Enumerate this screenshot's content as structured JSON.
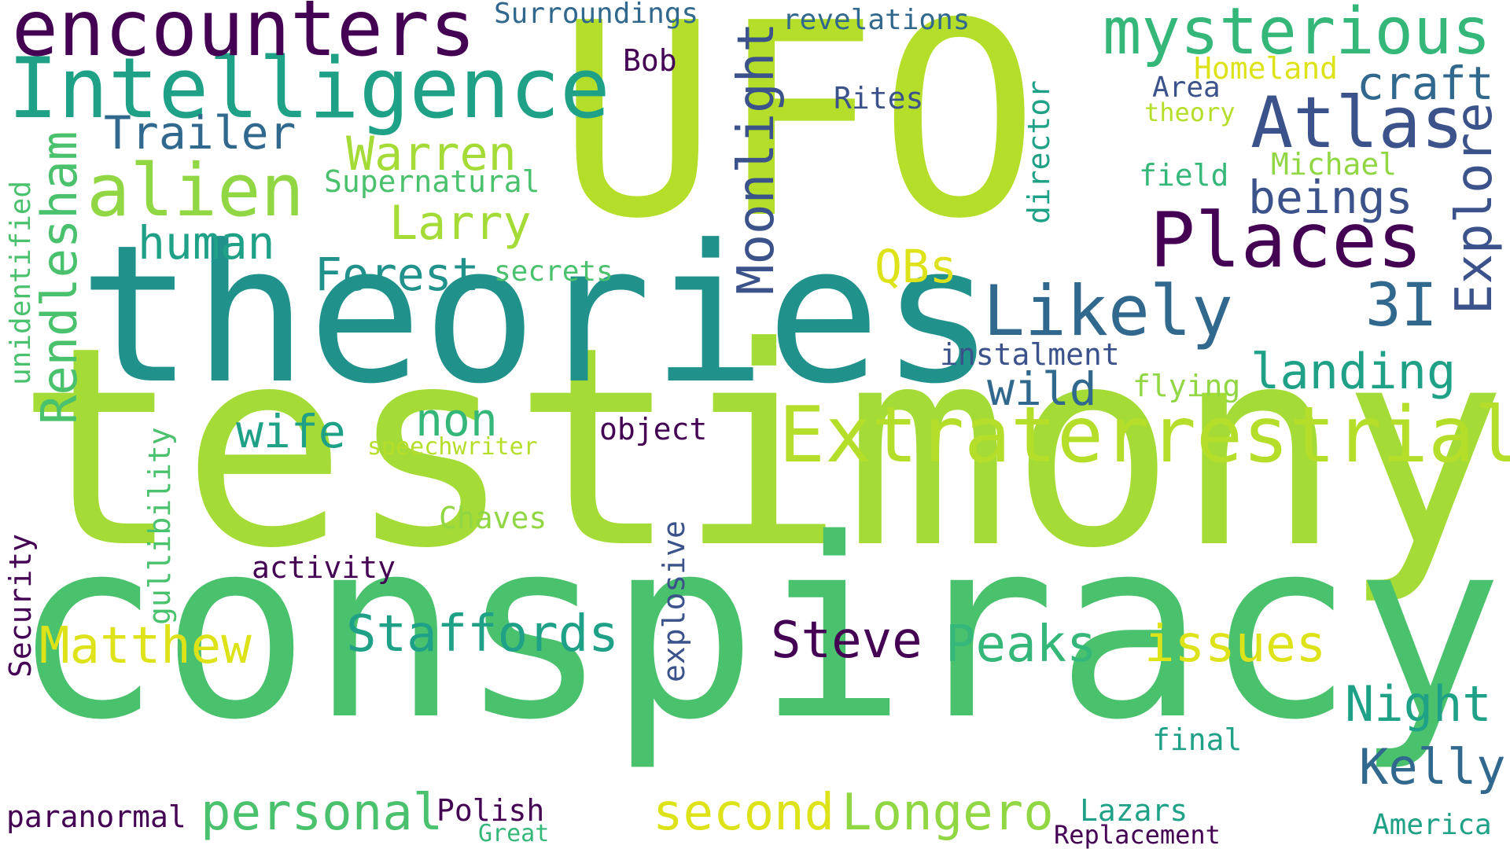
{
  "words": {
    "ufo": "UFO",
    "testimony": "testimony",
    "conspiracy": "conspiracy",
    "theories": "theories",
    "extraterrestrial": "Extraterrestrial",
    "intelligence": "Intelligence",
    "encounters": "encounters",
    "mysterious": "mysterious",
    "places": "Places",
    "likely": "Likely",
    "atlas": "Atlas",
    "alien": "alien",
    "staffords": "Staffords",
    "rendlesham": "Rendlesham",
    "moonlight": "Moonlight",
    "longero": "Longero",
    "personal": "personal",
    "second": "second",
    "matthew": "Matthew",
    "steve": "Steve",
    "peaks": "Peaks",
    "issues": "issues",
    "night": "Night",
    "kelly": "Kelly",
    "explore": "Explore",
    "landing": "landing",
    "wild": "wild",
    "warren": "Warren",
    "larry": "Larry",
    "human": "human",
    "forest": "Forest",
    "trailer": "Trailer",
    "non": "non",
    "wife": "wife",
    "qbs": "QBs",
    "three_i": "3I",
    "beings": "beings",
    "craft": "craft",
    "surroundings": "Surroundings",
    "revelations": "revelations",
    "bob": "Bob",
    "rites": "Rites",
    "area": "Area",
    "homeland": "Homeland",
    "theory": "theory",
    "michael": "Michael",
    "field": "field",
    "supernatural": "Supernatural",
    "secrets": "secrets",
    "director": "director",
    "unidentified": "unidentified",
    "instalment": "instalment",
    "flying": "flying",
    "object": "object",
    "speechwriter": "speechwriter",
    "gullibility": "gullibility",
    "chaves": "Chaves",
    "activity": "activity",
    "security": "Security",
    "explosive": "explosive",
    "final": "final",
    "paranormal": "paranormal",
    "polish": "Polish",
    "great": "Great",
    "lazars": "Lazars",
    "replacement": "Replacement",
    "america": "America"
  },
  "palette": {
    "dark_purple": "#440154",
    "indigo": "#3b528b",
    "blue": "#31688e",
    "teal": "#21918c",
    "green_teal": "#1fa187",
    "green": "#35b779",
    "mid_green": "#4ac16d",
    "lime": "#90d743",
    "yellow_green": "#b5de2b",
    "yellow": "#dde318"
  }
}
